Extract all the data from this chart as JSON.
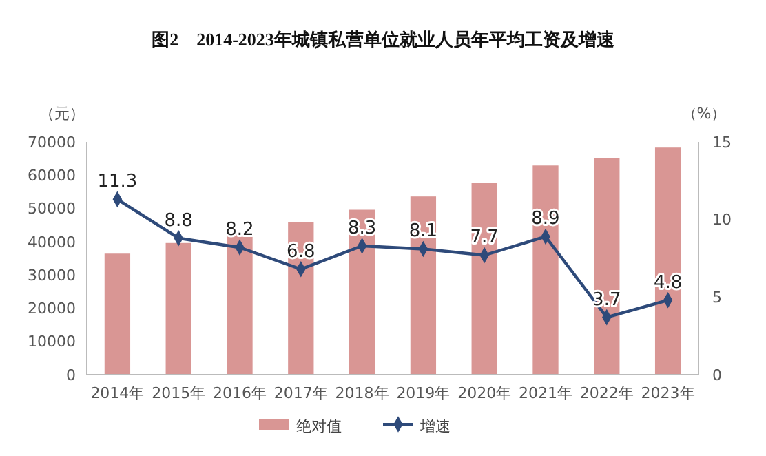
{
  "chart_data": {
    "type": "bar",
    "title": "图2　2014-2023年城镇私营单位就业人员年平均工资及增速",
    "ylabel": "（元）",
    "y2label": "（%）",
    "categories": [
      "2014年",
      "2015年",
      "2016年",
      "2017年",
      "2018年",
      "2019年",
      "2020年",
      "2021年",
      "2022年",
      "2023年"
    ],
    "series": [
      {
        "name": "绝对值",
        "color": "#d99694",
        "values": [
          36400,
          39600,
          42800,
          45800,
          49600,
          53600,
          57700,
          62900,
          65200,
          68300
        ]
      },
      {
        "name": "增速",
        "type": "line",
        "axis": "y2",
        "color": "#2e4a7a",
        "marker": "diamond",
        "values": [
          11.3,
          8.8,
          8.2,
          6.8,
          8.3,
          8.1,
          7.7,
          8.9,
          3.7,
          4.8
        ],
        "value_labels": [
          "11.3",
          "8.8",
          "8.2",
          "6.8",
          "8.3",
          "8.1",
          "7.7",
          "8.9",
          "3.7",
          "4.8"
        ]
      }
    ],
    "ylim": [
      0,
      70000
    ],
    "yticks": [
      0,
      10000,
      20000,
      30000,
      40000,
      50000,
      60000,
      70000
    ],
    "y2lim": [
      0,
      15
    ],
    "y2ticks": [
      0,
      5,
      10,
      15
    ],
    "grid": false,
    "legend": "bottom"
  }
}
